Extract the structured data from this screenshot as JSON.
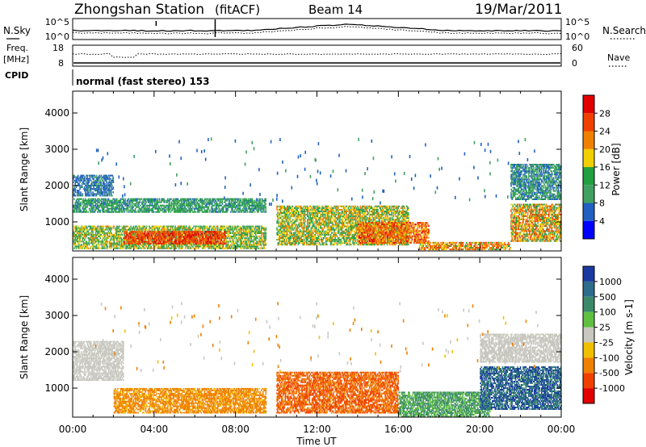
{
  "header": {
    "station": "Zhongshan Station",
    "mode": "(fitACF)",
    "beam": "Beam 14",
    "date": "19/Mar/2011"
  },
  "strips": {
    "sky_label": "N.Sky",
    "search_label": "N.Search",
    "sky_ticks": [
      "10^5",
      "10^0"
    ],
    "search_ticks": [
      "10^5",
      "10^0"
    ],
    "freq_label_line1": "Freq.",
    "freq_label_line2": "[MHz]",
    "freq_ticks": [
      "18",
      "8"
    ],
    "nave_label": "Nave",
    "nave_ticks": [
      "60",
      "0"
    ],
    "cpid_label": "CPID",
    "cpid_text": "normal (fast stereo) 153"
  },
  "colors": {
    "power": [
      "#0000ff",
      "#2060c0",
      "#40a060",
      "#20a040",
      "#f0d000",
      "#f08000",
      "#f04000",
      "#e00000"
    ],
    "velocity": [
      "#1a3aa0",
      "#2e6c8c",
      "#3a8a6a",
      "#60c040",
      "#c8c8c0",
      "#f0c000",
      "#f08000",
      "#f04000",
      "#e00000"
    ]
  },
  "chart_data": [
    {
      "type": "heatmap",
      "name": "power",
      "ylabel": "Slant Range [km]",
      "xlabel": "",
      "x_ticks": [
        "00:00",
        "04:00",
        "08:00",
        "12:00",
        "16:00",
        "20:00",
        "00:00"
      ],
      "x_range_hours": [
        0,
        24
      ],
      "y_ticks": [
        1000,
        2000,
        3000,
        4000
      ],
      "ylim": [
        200,
        4600
      ],
      "colorbar_label": "Power [dB]",
      "colorbar_ticks": [
        "28",
        "24",
        "20",
        "16",
        "12",
        "8",
        "4"
      ],
      "colorbar_range": [
        0,
        32
      ],
      "layers": [
        {
          "t0": 0.0,
          "t1": 9.5,
          "r0": 250,
          "r1": 900,
          "v0": 8,
          "v1": 22
        },
        {
          "t0": 2.5,
          "t1": 7.5,
          "r0": 380,
          "r1": 750,
          "v0": 22,
          "v1": 30
        },
        {
          "t0": 0.0,
          "t1": 9.5,
          "r0": 1250,
          "r1": 1650,
          "v0": 6,
          "v1": 16
        },
        {
          "t0": 0.0,
          "t1": 2.0,
          "r0": 1700,
          "r1": 2300,
          "v0": 4,
          "v1": 10
        },
        {
          "t0": 10.0,
          "t1": 16.5,
          "r0": 350,
          "r1": 1450,
          "v0": 8,
          "v1": 24
        },
        {
          "t0": 14.0,
          "t1": 17.5,
          "r0": 400,
          "r1": 1000,
          "v0": 18,
          "v1": 30
        },
        {
          "t0": 17.0,
          "t1": 21.5,
          "r0": 220,
          "r1": 450,
          "v0": 14,
          "v1": 28
        },
        {
          "t0": 21.5,
          "t1": 24.0,
          "r0": 450,
          "r1": 1500,
          "v0": 10,
          "v1": 28
        },
        {
          "t0": 21.5,
          "t1": 24.0,
          "r0": 1600,
          "r1": 2600,
          "v0": 4,
          "v1": 14
        }
      ]
    },
    {
      "type": "heatmap",
      "name": "velocity",
      "ylabel": "Slant Range [km]",
      "xlabel": "Time UT",
      "x_ticks": [
        "00:00",
        "04:00",
        "08:00",
        "12:00",
        "16:00",
        "20:00",
        "00:00"
      ],
      "x_range_hours": [
        0,
        24
      ],
      "y_ticks": [
        1000,
        2000,
        3000,
        4000
      ],
      "ylim": [
        200,
        4600
      ],
      "colorbar_label": "Velocity [m s-1]",
      "colorbar_ticks": [
        "1000",
        "500",
        "100",
        "25",
        "-25",
        "-100",
        "-500",
        "-1000"
      ],
      "layers": [
        {
          "t0": 0.0,
          "t1": 2.5,
          "r0": 1200,
          "r1": 2300,
          "v0": -25,
          "v1": 25
        },
        {
          "t0": 2.0,
          "t1": 9.5,
          "r0": 300,
          "r1": 1000,
          "v0": -300,
          "v1": -50
        },
        {
          "t0": 10.0,
          "t1": 16.0,
          "r0": 300,
          "r1": 1450,
          "v0": -500,
          "v1": -100
        },
        {
          "t0": 16.0,
          "t1": 20.5,
          "r0": 200,
          "r1": 900,
          "v0": 25,
          "v1": 200
        },
        {
          "t0": 20.0,
          "t1": 24.0,
          "r0": 400,
          "r1": 1600,
          "v0": 100,
          "v1": 700
        },
        {
          "t0": 20.0,
          "t1": 24.0,
          "r0": 1700,
          "r1": 2500,
          "v0": -25,
          "v1": 25
        }
      ]
    }
  ]
}
